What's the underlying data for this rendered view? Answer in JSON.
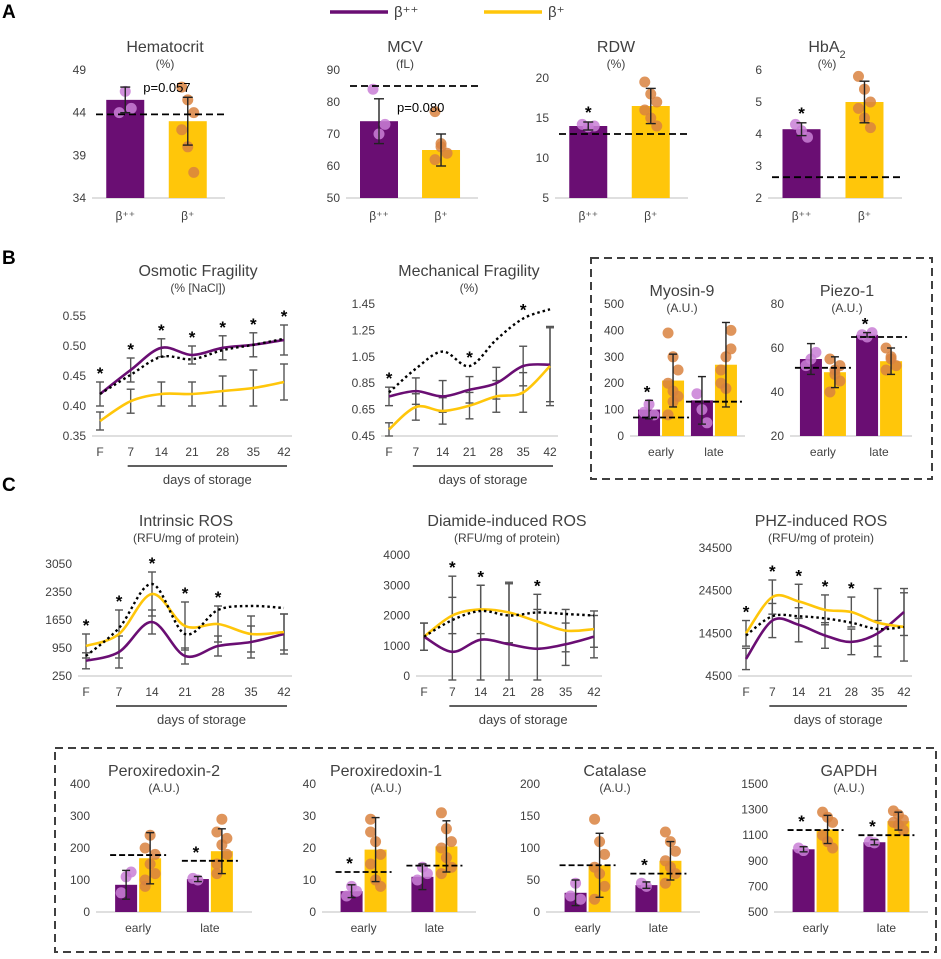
{
  "colors": {
    "bpp": "#6a0e73",
    "bp": "#ffc60a",
    "dot_bpp": "#c97fd6",
    "dot_bp": "#d9823f",
    "ref": "#000000",
    "err": "#555555"
  },
  "legend": {
    "bpp": "β⁺⁺",
    "bp": "β⁺"
  },
  "panel_labels": {
    "a": "A",
    "b": "B",
    "c": "C"
  },
  "chart_data": [
    {
      "id": "hct",
      "type": "bar",
      "title": "Hematocrit",
      "subtitle": "(%)",
      "categories": [
        "β⁺⁺",
        "β⁺"
      ],
      "values": [
        45.5,
        43
      ],
      "errors": [
        1.5,
        2.8
      ],
      "ref": 43.8,
      "ylim": [
        34,
        49
      ],
      "ticks": [
        "34",
        "39",
        "44",
        "49"
      ],
      "stars": [
        false,
        false
      ],
      "annotation": "p=0.057",
      "points": [
        [
          44,
          46.5,
          44.5
        ],
        [
          47,
          45.5,
          44,
          42,
          40,
          37
        ]
      ]
    },
    {
      "id": "mcv",
      "type": "bar",
      "title": "MCV",
      "subtitle": "(fL)",
      "categories": [
        "β⁺⁺",
        "β⁺"
      ],
      "values": [
        74,
        65
      ],
      "errors": [
        7,
        5
      ],
      "ref": 85,
      "ylim": [
        50,
        90
      ],
      "ticks": [
        "50",
        "60",
        "70",
        "80",
        "90"
      ],
      "stars": [
        false,
        false
      ],
      "annotation": "p=0.080",
      "points": [
        [
          84,
          70,
          73
        ],
        [
          77,
          66,
          64,
          62,
          67
        ]
      ]
    },
    {
      "id": "rdw",
      "type": "bar",
      "title": "RDW",
      "subtitle": "(%)",
      "categories": [
        "β⁺⁺",
        "β⁺"
      ],
      "values": [
        14,
        16.5
      ],
      "errors": [
        0.5,
        2.2
      ],
      "ref": 13,
      "ylim": [
        5,
        20
      ],
      "ticks": [
        "5",
        "10",
        "15",
        "20"
      ],
      "stars": [
        true,
        false
      ],
      "annotation": "",
      "points": [
        [
          14.2,
          13.9,
          14
        ],
        [
          19.5,
          18,
          17,
          16,
          15,
          14
        ]
      ]
    },
    {
      "id": "hba2",
      "type": "bar",
      "title": "HbA",
      "subtitle": "(%)",
      "categories": [
        "β⁺⁺",
        "β⁺"
      ],
      "values": [
        4.15,
        5
      ],
      "errors": [
        0.2,
        0.65
      ],
      "ref": 2.65,
      "ylim": [
        2,
        6
      ],
      "ticks": [
        "2",
        "3",
        "4",
        "5",
        "6"
      ],
      "stars": [
        true,
        false
      ],
      "annotation": "",
      "title_sub": "2",
      "points": [
        [
          4.3,
          4.1,
          3.9
        ],
        [
          5.8,
          5.4,
          5,
          4.8,
          4.5,
          4.2
        ]
      ]
    },
    {
      "id": "osm",
      "type": "line",
      "title": "Osmotic Fragility",
      "subtitle": "(% [NaCl])",
      "x": [
        "F",
        "7",
        "14",
        "21",
        "28",
        "35",
        "42"
      ],
      "ylim": [
        0.35,
        0.55
      ],
      "ticks": [
        "0.35",
        "0.40",
        "0.45",
        "0.50",
        "0.55"
      ],
      "series": [
        {
          "name": "β⁺⁺",
          "values": [
            0.42,
            0.46,
            0.497,
            0.485,
            0.497,
            0.502,
            0.51
          ],
          "errors": [
            0.02,
            0.02,
            0.015,
            0.015,
            0.02,
            0.02,
            0.025
          ]
        },
        {
          "name": "β⁺",
          "values": [
            0.375,
            0.408,
            0.42,
            0.42,
            0.425,
            0.43,
            0.44
          ],
          "errors": [
            0.015,
            0.02,
            0.02,
            0.02,
            0.025,
            0.03,
            0.03
          ]
        }
      ],
      "ref": [
        0.42,
        0.452,
        0.482,
        0.478,
        0.493,
        0.502,
        0.512
      ],
      "stars": [
        true,
        true,
        true,
        true,
        true,
        true,
        true
      ],
      "xlabel": "days of storage"
    },
    {
      "id": "mech",
      "type": "line",
      "title": "Mechanical Fragility",
      "subtitle": "(%)",
      "x": [
        "F",
        "7",
        "14",
        "21",
        "28",
        "35",
        "42"
      ],
      "ylim": [
        0.45,
        1.45
      ],
      "ticks": [
        "0.45",
        "0.65",
        "0.85",
        "1.05",
        "1.25",
        "1.45"
      ],
      "series": [
        {
          "name": "β⁺⁺",
          "values": [
            0.75,
            0.79,
            0.75,
            0.8,
            0.85,
            0.98,
            0.99
          ],
          "errors": [
            0.07,
            0.1,
            0.12,
            0.1,
            0.12,
            0.15,
            0.28
          ]
        },
        {
          "name": "β⁺",
          "values": [
            0.5,
            0.67,
            0.64,
            0.68,
            0.75,
            0.78,
            0.98
          ],
          "errors": [
            0.05,
            0.1,
            0.1,
            0.1,
            0.12,
            0.15,
            0.3
          ]
        }
      ],
      "ref": [
        0.78,
        0.96,
        1.09,
        0.98,
        1.18,
        1.34,
        1.41
      ],
      "stars": [
        true,
        false,
        false,
        true,
        false,
        true,
        false
      ],
      "xlabel": "days of storage"
    },
    {
      "id": "myo",
      "type": "bar",
      "title": "Myosin-9",
      "subtitle": "(A.U.)",
      "categories": [
        "early",
        "late"
      ],
      "group": true,
      "series": [
        {
          "name": "β⁺⁺",
          "values": [
            100,
            135
          ],
          "errors": [
            35,
            90
          ]
        },
        {
          "name": "β⁺",
          "values": [
            210,
            270
          ],
          "errors": [
            100,
            160
          ]
        }
      ],
      "ref": [
        70,
        130
      ],
      "ylim": [
        0,
        500
      ],
      "ticks": [
        "0",
        "100",
        "200",
        "300",
        "400",
        "500"
      ],
      "stars": [
        true,
        false
      ],
      "points": [
        [
          [
            90,
            120,
            80
          ],
          [
            200,
            130,
            150,
            80,
            300,
            250,
            390,
            170
          ]
        ],
        [
          [
            160,
            100,
            50
          ],
          [
            250,
            300,
            330,
            200,
            180,
            400
          ]
        ]
      ]
    },
    {
      "id": "pie",
      "type": "bar",
      "title": "Piezo-1",
      "subtitle": "(A.U.)",
      "categories": [
        "early",
        "late"
      ],
      "group": true,
      "series": [
        {
          "name": "β⁺⁺",
          "values": [
            55,
            66
          ],
          "errors": [
            7,
            1
          ]
        },
        {
          "name": "β⁺",
          "values": [
            49,
            54
          ],
          "errors": [
            7,
            6
          ]
        }
      ],
      "ref": [
        51,
        65
      ],
      "ylim": [
        20,
        80
      ],
      "ticks": [
        "20",
        "40",
        "60",
        "80"
      ],
      "stars": [
        false,
        true
      ],
      "points": [
        [
          [
            52,
            55,
            58
          ],
          [
            55,
            50,
            45,
            40,
            48,
            52
          ]
        ],
        [
          [
            66,
            65,
            67
          ],
          [
            60,
            55,
            52,
            50,
            56
          ]
        ]
      ]
    },
    {
      "id": "iros",
      "type": "line",
      "title": "Intrinsic ROS",
      "subtitle": "(RFU/mg of protein)",
      "x": [
        "F",
        "7",
        "14",
        "21",
        "28",
        "35",
        "42"
      ],
      "ylim": [
        250,
        3050
      ],
      "ticks": [
        "250",
        "950",
        "1650",
        "2350",
        "3050"
      ],
      "series": [
        {
          "name": "β⁺⁺",
          "values": [
            630,
            850,
            1600,
            750,
            1000,
            1100,
            1300
          ],
          "errors": [
            200,
            400,
            300,
            200,
            250,
            400,
            500
          ]
        },
        {
          "name": "β⁺",
          "values": [
            1000,
            1300,
            2300,
            1500,
            1550,
            1300,
            1350
          ],
          "errors": [
            300,
            600,
            550,
            600,
            450,
            450,
            450
          ]
        }
      ],
      "ref": [
        750,
        1450,
        2550,
        1300,
        1900,
        2000,
        1950
      ],
      "stars": [
        true,
        true,
        true,
        true,
        true,
        false,
        false
      ],
      "xlabel": "days of storage"
    },
    {
      "id": "dros",
      "type": "line",
      "title": "Diamide-induced ROS",
      "subtitle": "(RFU/mg of protein)",
      "x": [
        "F",
        "7",
        "14",
        "21",
        "28",
        "35",
        "42"
      ],
      "ylim": [
        0,
        4000
      ],
      "ticks": [
        "0",
        "1000",
        "2000",
        "3000",
        "4000"
      ],
      "series": [
        {
          "name": "β⁺⁺",
          "values": [
            1300,
            800,
            1200,
            1050,
            900,
            1050,
            1300
          ],
          "errors": [
            450,
            2500,
            1800,
            2000,
            1300,
            700,
            700
          ]
        },
        {
          "name": "β⁺",
          "values": [
            1300,
            2000,
            2200,
            2100,
            1800,
            1500,
            1550
          ],
          "errors": [
            450,
            600,
            800,
            1000,
            900,
            700,
            600
          ]
        }
      ],
      "ref": [
        1300,
        1850,
        2150,
        2000,
        2100,
        2050,
        2000
      ],
      "stars": [
        false,
        true,
        true,
        false,
        true,
        false,
        false
      ],
      "xlabel": "days of storage"
    },
    {
      "id": "pros",
      "type": "line",
      "title": "PHZ-induced ROS",
      "subtitle": "(RFU/mg of protein)",
      "x": [
        "F",
        "7",
        "14",
        "21",
        "28",
        "35",
        "42"
      ],
      "ylim": [
        4500,
        34500
      ],
      "ticks": [
        "4500",
        "14500",
        "24500",
        "34500"
      ],
      "series": [
        {
          "name": "β⁺⁺",
          "values": [
            8500,
            17500,
            16500,
            14000,
            12500,
            14500,
            19500
          ],
          "errors": [
            2500,
            4000,
            4000,
            3000,
            3000,
            3000,
            5500
          ]
        },
        {
          "name": "β⁺",
          "values": [
            14500,
            23000,
            22000,
            20000,
            19500,
            17000,
            16000
          ],
          "errors": [
            3000,
            4000,
            4000,
            3500,
            3500,
            8000,
            8000
          ]
        }
      ],
      "ref": [
        14000,
        18500,
        18500,
        18000,
        17000,
        15500,
        16000
      ],
      "stars": [
        true,
        true,
        true,
        true,
        true,
        false,
        false
      ],
      "xlabel": "days of storage"
    },
    {
      "id": "prx2",
      "type": "bar",
      "title": "Peroxiredoxin-2",
      "subtitle": "(A.U.)",
      "categories": [
        "early",
        "late"
      ],
      "group": true,
      "series": [
        {
          "name": "β⁺⁺",
          "values": [
            85,
            103
          ],
          "errors": [
            45,
            8
          ]
        },
        {
          "name": "β⁺",
          "values": [
            168,
            190
          ],
          "errors": [
            80,
            70
          ]
        }
      ],
      "ref": [
        178,
        160
      ],
      "ylim": [
        0,
        400
      ],
      "ticks": [
        "0",
        "100",
        "200",
        "300",
        "400"
      ],
      "stars": [
        false,
        true
      ],
      "points": [
        [
          [
            60,
            110,
            125
          ],
          [
            200,
            150,
            120,
            100,
            240,
            180,
            80
          ]
        ],
        [
          [
            105,
            100
          ],
          [
            250,
            210,
            180,
            150,
            290,
            230,
            120
          ]
        ]
      ]
    },
    {
      "id": "prx1",
      "type": "bar",
      "title": "Peroxiredoxin-1",
      "subtitle": "(A.U.)",
      "categories": [
        "early",
        "late"
      ],
      "group": true,
      "series": [
        {
          "name": "β⁺⁺",
          "values": [
            6.5,
            11
          ],
          "errors": [
            2,
            4
          ]
        },
        {
          "name": "β⁺",
          "values": [
            19.5,
            20.5
          ],
          "errors": [
            10,
            8
          ]
        }
      ],
      "ref": [
        12.5,
        14.5
      ],
      "ylim": [
        0,
        40
      ],
      "ticks": [
        "0",
        "10",
        "20",
        "30",
        "40"
      ],
      "stars": [
        true,
        false
      ],
      "points": [
        [
          [
            5,
            8,
            6.5
          ],
          [
            29,
            22,
            18,
            15,
            10,
            8,
            25
          ]
        ],
        [
          [
            10,
            14,
            12
          ],
          [
            31,
            26,
            22,
            20,
            17,
            14,
            12
          ]
        ]
      ]
    },
    {
      "id": "cat",
      "type": "bar",
      "title": "Catalase",
      "subtitle": "(A.U.)",
      "categories": [
        "early",
        "late"
      ],
      "group": true,
      "series": [
        {
          "name": "β⁺⁺",
          "values": [
            30,
            42
          ],
          "errors": [
            20,
            5
          ]
        },
        {
          "name": "β⁺",
          "values": [
            73,
            80
          ],
          "errors": [
            50,
            30
          ]
        }
      ],
      "ref": [
        73,
        60
      ],
      "ylim": [
        0,
        200
      ],
      "ticks": [
        "0",
        "50",
        "100",
        "150",
        "200"
      ],
      "stars": [
        false,
        true
      ],
      "points": [
        [
          [
            25,
            45,
            20
          ],
          [
            145,
            110,
            90,
            70,
            60,
            40,
            20
          ]
        ],
        [
          [
            45,
            40
          ],
          [
            125,
            110,
            95,
            80,
            70,
            60,
            45
          ]
        ]
      ]
    },
    {
      "id": "gapdh",
      "type": "bar",
      "title": "GAPDH",
      "subtitle": "(A.U.)",
      "categories": [
        "early",
        "late"
      ],
      "group": true,
      "series": [
        {
          "name": "β⁺⁺",
          "values": [
            990,
            1045
          ],
          "errors": [
            20,
            20
          ]
        },
        {
          "name": "β⁺",
          "values": [
            1145,
            1210
          ],
          "errors": [
            110,
            70
          ]
        }
      ],
      "ref": [
        1140,
        1100
      ],
      "ylim": [
        500,
        1500
      ],
      "ticks": [
        "500",
        "700",
        "900",
        "1100",
        "1300",
        "1500"
      ],
      "stars": [
        true,
        true
      ],
      "points": [
        [
          [
            1000,
            980
          ],
          [
            1280,
            1240,
            1200,
            1100,
            1050,
            1000
          ]
        ],
        [
          [
            1050,
            1040
          ],
          [
            1290,
            1260,
            1220,
            1200,
            1180,
            1140
          ]
        ]
      ]
    }
  ]
}
